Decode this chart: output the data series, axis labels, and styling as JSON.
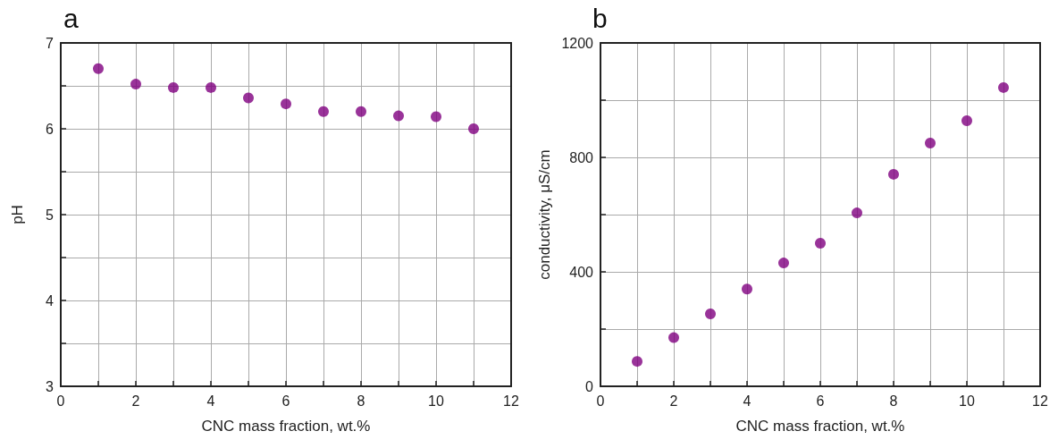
{
  "chart_data": [
    {
      "type": "scatter",
      "title": "a",
      "xlabel": "CNC mass fraction, wt.%",
      "ylabel": "pH",
      "x": [
        1,
        2,
        3,
        4,
        5,
        6,
        7,
        8,
        9,
        10,
        11
      ],
      "series": [
        {
          "color": "#800080",
          "values": [
            6.7,
            6.52,
            6.48,
            6.48,
            6.36,
            6.29,
            6.2,
            6.2,
            6.15,
            6.14,
            6.0
          ]
        }
      ],
      "xlim": [
        0,
        12
      ],
      "xticks": [
        0,
        {
          "value": 1,
          "label": null
        },
        2,
        {
          "value": 3,
          "label": null
        },
        4,
        {
          "value": 5,
          "label": null
        },
        6,
        {
          "value": 7,
          "label": null
        },
        8,
        {
          "value": 9,
          "label": null
        },
        10,
        {
          "value": 11,
          "label": null
        },
        12
      ],
      "ylim": [
        3,
        7
      ],
      "yticks": [
        3,
        {
          "value": 3.5,
          "label": null
        },
        4,
        {
          "value": 4.5,
          "label": null
        },
        5,
        {
          "value": 5.5,
          "label": null
        },
        6,
        {
          "value": 6.5,
          "label": null
        },
        7
      ],
      "grid": true,
      "marker": "circle"
    },
    {
      "type": "scatter",
      "title": "b",
      "xlabel": "CNC mass fraction, wt.%",
      "ylabel": "conductivity, μS/cm",
      "x": [
        1,
        2,
        3,
        4,
        5,
        6,
        7,
        8,
        9,
        10,
        11
      ],
      "series": [
        {
          "color": "#800080",
          "values": [
            87,
            170,
            253,
            340,
            431,
            500,
            606,
            741,
            850,
            928,
            1044
          ]
        }
      ],
      "xlim": [
        0,
        12
      ],
      "xticks": [
        0,
        {
          "value": 1,
          "label": null
        },
        2,
        {
          "value": 3,
          "label": null
        },
        4,
        {
          "value": 5,
          "label": null
        },
        6,
        {
          "value": 7,
          "label": null
        },
        8,
        {
          "value": 9,
          "label": null
        },
        10,
        {
          "value": 11,
          "label": null
        },
        12
      ],
      "ylim": [
        0,
        1200
      ],
      "yticks": [
        0,
        {
          "value": 200,
          "label": null
        },
        400,
        {
          "value": 600,
          "label": null
        },
        800,
        {
          "value": 1000,
          "label": null
        },
        1200
      ],
      "grid": true,
      "marker": "circle"
    }
  ]
}
